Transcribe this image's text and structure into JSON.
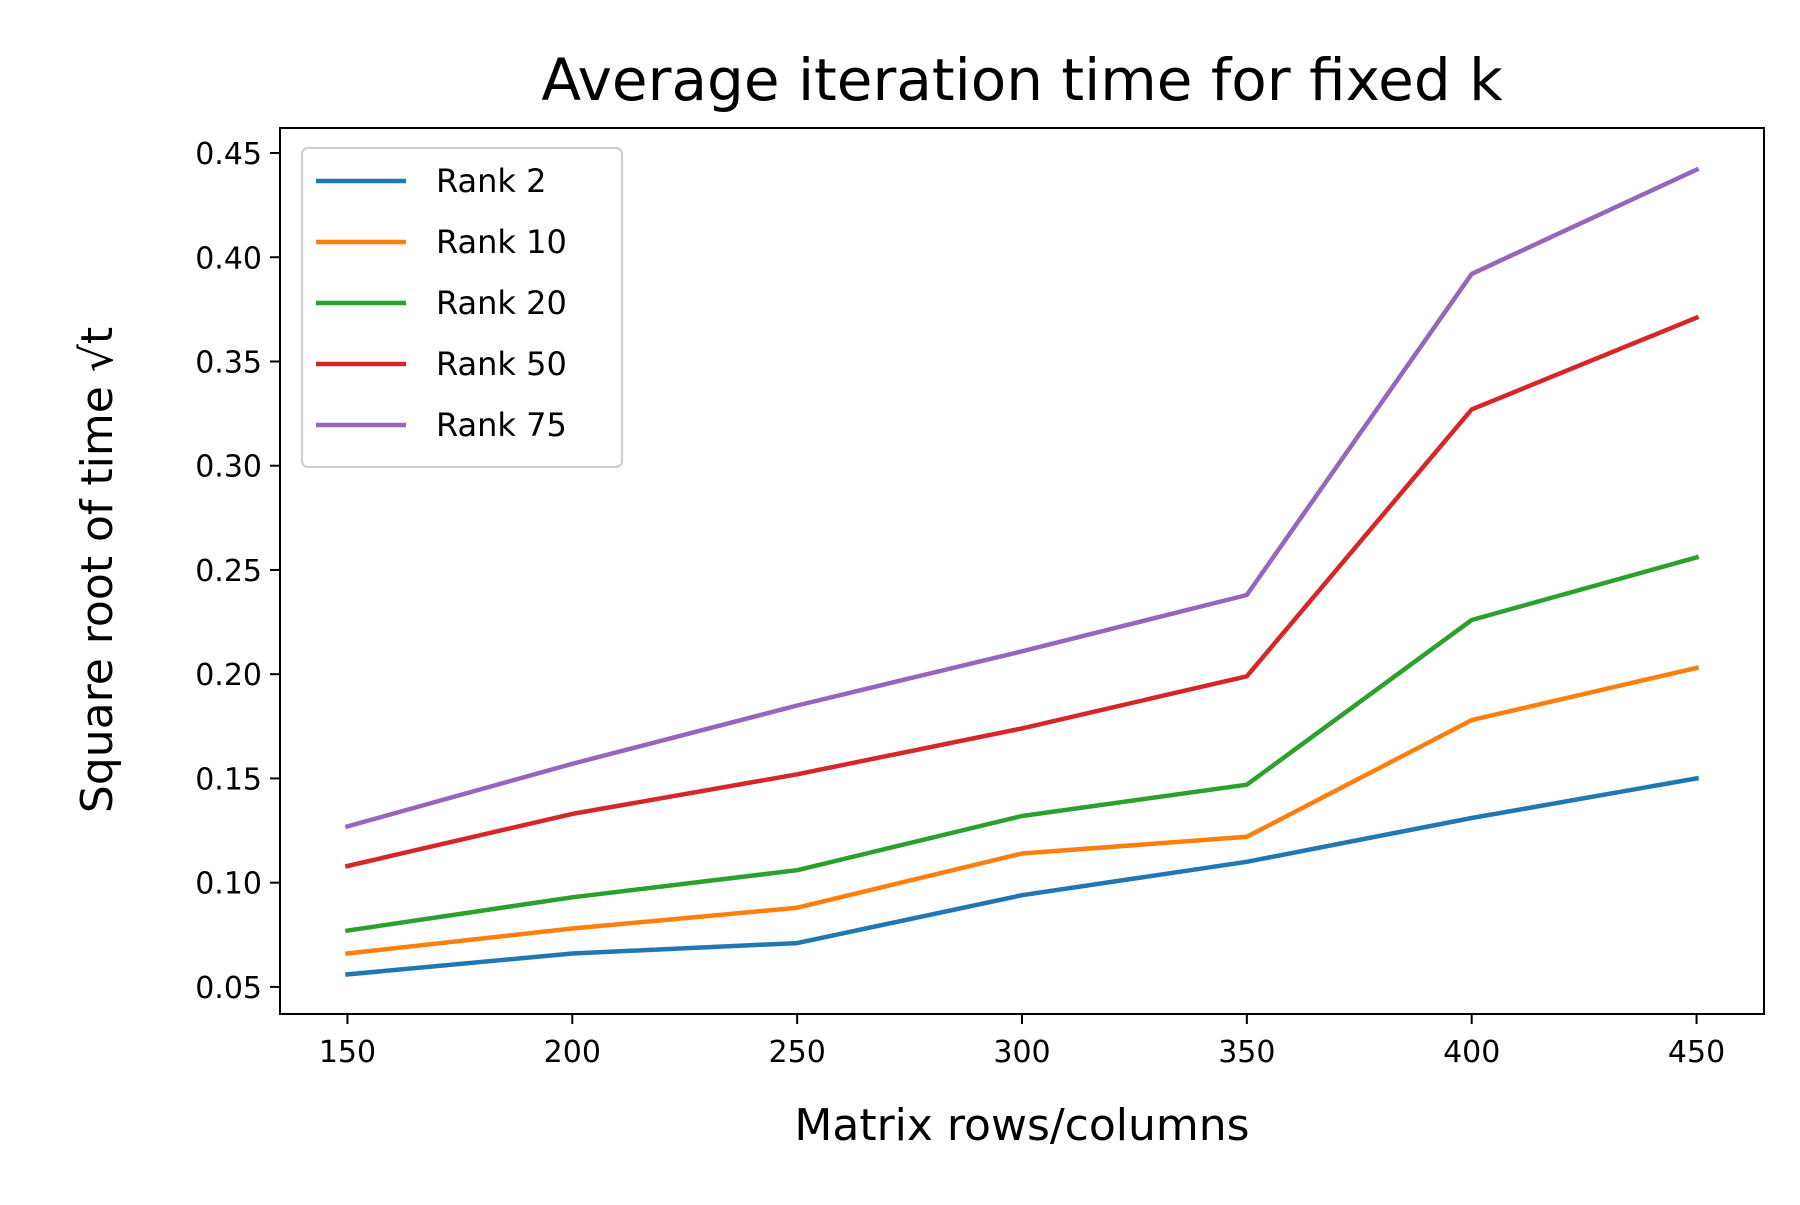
{
  "chart_data": {
    "type": "line",
    "title": "Average iteration time for fixed k",
    "xlabel": "Matrix rows/columns",
    "ylabel": "Square root of time √t",
    "x": [
      150,
      200,
      250,
      300,
      350,
      400,
      450
    ],
    "xlim": [
      135,
      465
    ],
    "ylim": [
      0.037,
      0.462
    ],
    "xticks": [
      150,
      200,
      250,
      300,
      350,
      400,
      450
    ],
    "yticks": [
      0.05,
      0.1,
      0.15,
      0.2,
      0.25,
      0.3,
      0.35,
      0.4,
      0.45
    ],
    "ytick_labels": [
      "0.05",
      "0.10",
      "0.15",
      "0.20",
      "0.25",
      "0.30",
      "0.35",
      "0.40",
      "0.45"
    ],
    "grid": false,
    "legend_position": "top-left",
    "series": [
      {
        "name": "Rank 2",
        "color": "#1f77b4",
        "values": [
          0.056,
          0.066,
          0.071,
          0.094,
          0.11,
          0.131,
          0.15
        ]
      },
      {
        "name": "Rank 10",
        "color": "#ff7f0e",
        "values": [
          0.066,
          0.078,
          0.088,
          0.114,
          0.122,
          0.178,
          0.203
        ]
      },
      {
        "name": "Rank 20",
        "color": "#2ca02c",
        "values": [
          0.077,
          0.093,
          0.106,
          0.132,
          0.147,
          0.226,
          0.256
        ]
      },
      {
        "name": "Rank 50",
        "color": "#d62728",
        "values": [
          0.108,
          0.133,
          0.152,
          0.174,
          0.199,
          0.327,
          0.371
        ]
      },
      {
        "name": "Rank 75",
        "color": "#9467bd",
        "values": [
          0.127,
          0.157,
          0.185,
          0.211,
          0.238,
          0.392,
          0.442
        ]
      }
    ]
  }
}
